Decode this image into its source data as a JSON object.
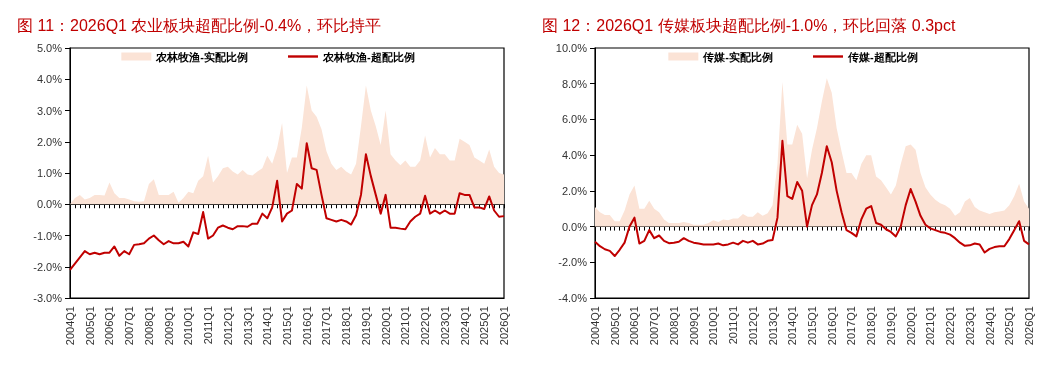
{
  "chart_data": [
    {
      "type": "line",
      "title": "图 11：2026Q1 农业板块超配比例-0.4%，环比持平",
      "legend": "top",
      "marker": "none",
      "categories": [
        "2004Q1",
        null,
        null,
        null,
        "2005Q1",
        null,
        null,
        null,
        "2006Q1",
        null,
        null,
        null,
        "2007Q1",
        null,
        null,
        null,
        "2008Q1",
        null,
        null,
        null,
        "2009Q1",
        null,
        null,
        null,
        "2010Q1",
        null,
        null,
        null,
        "2011Q1",
        null,
        null,
        null,
        "2012Q1",
        null,
        null,
        null,
        "2013Q1",
        null,
        null,
        null,
        "2014Q1",
        null,
        null,
        null,
        "2015Q1",
        null,
        null,
        null,
        "2016Q1",
        null,
        null,
        null,
        "2017Q1",
        null,
        null,
        null,
        "2018Q1",
        null,
        null,
        null,
        "2019Q1",
        null,
        null,
        null,
        "2020Q1",
        null,
        null,
        null,
        "2021Q1",
        null,
        null,
        null,
        "2022Q1",
        null,
        null,
        null,
        "2023Q1",
        null,
        null,
        null,
        "2024Q1",
        null,
        null,
        null,
        "2025Q1",
        null,
        null,
        null,
        "2026Q1"
      ],
      "ylim": [
        -3,
        5
      ],
      "yticks": [
        {
          "value": -3,
          "label": "-3.0%"
        },
        {
          "value": -2,
          "label": "-2.0%"
        },
        {
          "value": -1,
          "label": "-1.0%"
        },
        {
          "value": 0,
          "label": "0.0%"
        },
        {
          "value": 1,
          "label": "1.0%"
        },
        {
          "value": 2,
          "label": "2.0%"
        },
        {
          "value": 3,
          "label": "3.0%"
        },
        {
          "value": 4,
          "label": "4.0%"
        },
        {
          "value": 5,
          "label": "5.0%"
        }
      ],
      "series": [
        {
          "name": "农林牧渔-实配比例",
          "type": "area",
          "color": "#fbe3d6",
          "values": [
            0,
            0.2,
            0.3,
            0.15,
            0.2,
            0.3,
            0.3,
            0.28,
            0.7,
            0.35,
            0.2,
            0.2,
            0.15,
            0.1,
            0.08,
            0.1,
            0.65,
            0.8,
            0.3,
            0.3,
            0.3,
            0.4,
            0.05,
            0.2,
            0.4,
            0.35,
            0.75,
            0.9,
            1.55,
            0.7,
            0.9,
            1.15,
            1.2,
            1.05,
            0.95,
            1.1,
            0.95,
            0.92,
            1.05,
            1.15,
            1.55,
            1.3,
            1.8,
            2.6,
            1.0,
            1.5,
            1.5,
            2.45,
            3.8,
            3.0,
            2.8,
            2.4,
            1.7,
            1.3,
            1.1,
            1.2,
            1.05,
            0.95,
            1.3,
            2.5,
            3.8,
            3.0,
            2.5,
            1.9,
            3.0,
            1.6,
            1.4,
            1.25,
            1.4,
            1.2,
            1.2,
            1.4,
            2.2,
            1.5,
            1.8,
            1.6,
            1.6,
            1.4,
            1.4,
            2.1,
            2.0,
            1.9,
            1.5,
            1.4,
            1.3,
            1.75,
            1.2,
            1.0,
            0.95
          ]
        },
        {
          "name": "农林牧渔-超配比例",
          "color": "#c00000",
          "values": [
            -2.1,
            -1.9,
            -1.7,
            -1.5,
            -1.6,
            -1.55,
            -1.6,
            -1.55,
            -1.55,
            -1.35,
            -1.65,
            -1.5,
            -1.6,
            -1.3,
            -1.28,
            -1.25,
            -1.1,
            -1.0,
            -1.15,
            -1.28,
            -1.18,
            -1.25,
            -1.25,
            -1.2,
            -1.35,
            -0.9,
            -0.95,
            -0.25,
            -1.1,
            -1.0,
            -0.75,
            -0.68,
            -0.75,
            -0.8,
            -0.7,
            -0.7,
            -0.72,
            -0.62,
            -0.62,
            -0.3,
            -0.45,
            -0.1,
            0.75,
            -0.55,
            -0.3,
            -0.2,
            0.65,
            0.5,
            1.95,
            1.15,
            1.1,
            0.3,
            -0.45,
            -0.5,
            -0.55,
            -0.5,
            -0.55,
            -0.65,
            -0.35,
            0.3,
            1.6,
            0.9,
            0.3,
            -0.3,
            0.3,
            -0.75,
            -0.75,
            -0.78,
            -0.8,
            -0.55,
            -0.4,
            -0.3,
            0.27,
            -0.3,
            -0.2,
            -0.3,
            -0.2,
            -0.3,
            -0.3,
            0.35,
            0.3,
            0.3,
            -0.1,
            -0.1,
            -0.15,
            0.25,
            -0.2,
            -0.4,
            -0.38
          ]
        }
      ]
    },
    {
      "type": "line",
      "title": "图 12：2026Q1 传媒板块超配比例-1.0%，环比回落 0.3pct",
      "legend": "top",
      "marker": "none",
      "categories": [
        "2004Q1",
        null,
        null,
        null,
        "2005Q1",
        null,
        null,
        null,
        "2006Q1",
        null,
        null,
        null,
        "2007Q1",
        null,
        null,
        null,
        "2008Q1",
        null,
        null,
        null,
        "2009Q1",
        null,
        null,
        null,
        "2010Q1",
        null,
        null,
        null,
        "2011Q1",
        null,
        null,
        null,
        "2012Q1",
        null,
        null,
        null,
        "2013Q1",
        null,
        null,
        null,
        "2014Q1",
        null,
        null,
        null,
        "2015Q1",
        null,
        null,
        null,
        "2016Q1",
        null,
        null,
        null,
        "2017Q1",
        null,
        null,
        null,
        "2018Q1",
        null,
        null,
        null,
        "2019Q1",
        null,
        null,
        null,
        "2020Q1",
        null,
        null,
        null,
        "2021Q1",
        null,
        null,
        null,
        "2022Q1",
        null,
        null,
        null,
        "2023Q1",
        null,
        null,
        null,
        "2024Q1",
        null,
        null,
        null,
        "2025Q1",
        null,
        null,
        null,
        "2026Q1"
      ],
      "ylim": [
        -4,
        10
      ],
      "yticks": [
        {
          "value": -4,
          "label": "-4.0%"
        },
        {
          "value": -2,
          "label": "-2.0%"
        },
        {
          "value": 0,
          "label": "0.0%"
        },
        {
          "value": 2,
          "label": "2.0%"
        },
        {
          "value": 4,
          "label": "4.0%"
        },
        {
          "value": 6,
          "label": "6.0%"
        },
        {
          "value": 8,
          "label": "8.0%"
        },
        {
          "value": 10,
          "label": "10.0%"
        }
      ],
      "series": [
        {
          "name": "传媒-实配比例",
          "type": "area",
          "color": "#fbe3d6",
          "values": [
            1.1,
            0.8,
            0.65,
            0.65,
            0.3,
            0.3,
            0.9,
            1.8,
            2.3,
            1.0,
            1.0,
            1.45,
            1.0,
            0.8,
            0.4,
            0.2,
            0.2,
            0.2,
            0.25,
            0.2,
            0.1,
            0.1,
            0.1,
            0.2,
            0.35,
            0.25,
            0.4,
            0.35,
            0.45,
            0.45,
            0.7,
            0.55,
            0.55,
            0.8,
            0.6,
            0.75,
            1.2,
            3.5,
            8.1,
            4.6,
            4.6,
            5.7,
            5.2,
            2.7,
            4.3,
            5.5,
            7.0,
            8.3,
            7.5,
            5.5,
            4.2,
            3.0,
            3.0,
            2.6,
            3.5,
            4.0,
            4.0,
            2.8,
            2.6,
            2.2,
            1.8,
            2.3,
            3.5,
            4.5,
            4.6,
            4.3,
            3.0,
            2.2,
            1.8,
            1.5,
            1.3,
            1.2,
            1.0,
            0.6,
            0.8,
            1.4,
            1.6,
            1.1,
            0.9,
            0.8,
            0.7,
            0.8,
            0.85,
            0.9,
            1.2,
            1.7,
            2.4,
            1.4,
            1.0
          ]
        },
        {
          "name": "传媒-超配比例",
          "color": "#c00000",
          "values": [
            -0.85,
            -1.1,
            -1.27,
            -1.36,
            -1.65,
            -1.3,
            -0.9,
            0.0,
            0.5,
            -0.95,
            -0.8,
            -0.2,
            -0.65,
            -0.5,
            -0.8,
            -0.93,
            -0.9,
            -0.85,
            -0.65,
            -0.8,
            -0.9,
            -0.95,
            -1.0,
            -1.0,
            -1.0,
            -0.95,
            -1.05,
            -1.0,
            -0.9,
            -1.0,
            -0.8,
            -0.9,
            -0.8,
            -1.0,
            -0.95,
            -0.8,
            -0.75,
            0.5,
            4.8,
            1.7,
            1.55,
            2.5,
            2.0,
            0.0,
            1.2,
            1.8,
            3.0,
            4.5,
            3.6,
            2.0,
            0.8,
            -0.2,
            -0.35,
            -0.55,
            0.4,
            1.0,
            1.15,
            0.2,
            0.1,
            -0.15,
            -0.3,
            -0.55,
            0.0,
            1.2,
            2.1,
            1.4,
            0.6,
            0.1,
            -0.1,
            -0.2,
            -0.3,
            -0.35,
            -0.45,
            -0.65,
            -0.9,
            -1.08,
            -1.05,
            -0.95,
            -1.0,
            -1.45,
            -1.25,
            -1.15,
            -1.1,
            -1.1,
            -0.7,
            -0.2,
            0.3,
            -0.8,
            -1.0
          ]
        }
      ]
    }
  ]
}
